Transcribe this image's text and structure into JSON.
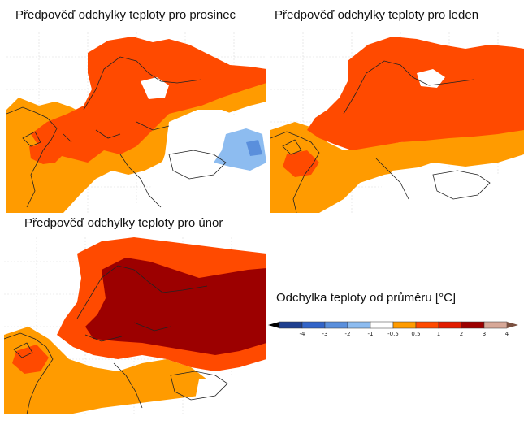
{
  "maps": [
    {
      "title": "Předpověď odchylky teploty pro prosinec",
      "month": "prosinec"
    },
    {
      "title": "Předpověď odchylky teploty pro leden",
      "month": "leden"
    },
    {
      "title": "Předpověď odchylky teploty pro únor",
      "month": "únor"
    }
  ],
  "legend": {
    "title": "Odchylka teploty od průměru [°C]",
    "ticks": [
      "-4",
      "-3",
      "-2",
      "-1",
      "-0.5",
      "0.5",
      "1",
      "2",
      "3",
      "4"
    ],
    "colors": [
      "#1f3f8f",
      "#3264c8",
      "#5a8fdc",
      "#8dbcf0",
      "#ffffff",
      "#ff9b00",
      "#ff4a00",
      "#e21c00",
      "#9c0000",
      "#d7a898"
    ]
  }
}
